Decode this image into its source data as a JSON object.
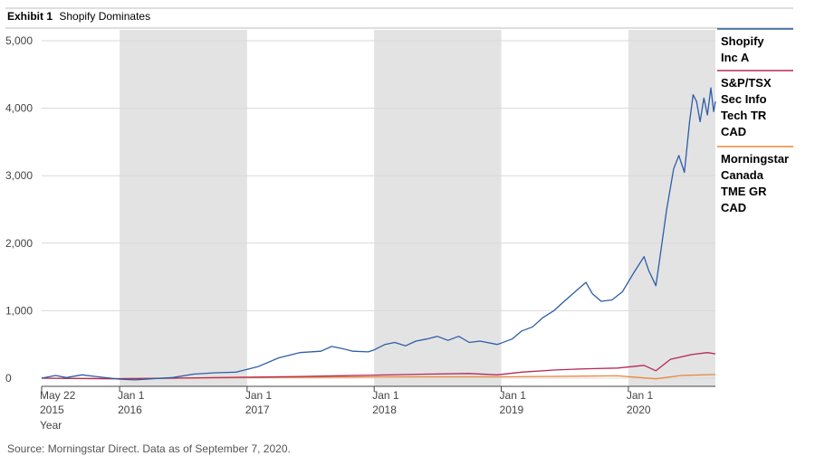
{
  "exhibit": {
    "label": "Exhibit 1",
    "title": "Shopify Dominates"
  },
  "source_note": "Source: Morningstar Direct. Data as of September 7, 2020.",
  "chart_data": {
    "type": "line",
    "ylim": [
      0,
      5000
    ],
    "y_ticks": [
      0,
      1000,
      2000,
      3000,
      4000,
      5000
    ],
    "y_tick_labels": [
      "0",
      "1,000",
      "2,000",
      "3,000",
      "4,000",
      "5,000"
    ],
    "xlim": [
      "2015-05-22",
      "2020-09-07"
    ],
    "x_ticks": [
      {
        "date": "2015-05-22",
        "line1": "May 22",
        "line2": "2015",
        "line3": "Year"
      },
      {
        "date": "2016-01-01",
        "line1": "Jan 1",
        "line2": "2016"
      },
      {
        "date": "2017-01-01",
        "line1": "Jan 1",
        "line2": "2017"
      },
      {
        "date": "2018-01-01",
        "line1": "Jan 1",
        "line2": "2018"
      },
      {
        "date": "2019-01-01",
        "line1": "Jan 1",
        "line2": "2019"
      },
      {
        "date": "2020-01-01",
        "line1": "Jan 1",
        "line2": "2020"
      }
    ],
    "shaded_years": [
      [
        "2016-01-01",
        "2017-01-01"
      ],
      [
        "2018-01-01",
        "2019-01-01"
      ],
      [
        "2020-01-01",
        "2020-09-07"
      ]
    ],
    "grid": true,
    "legend_position": "right",
    "series": [
      {
        "name": "Shopify Inc A",
        "color": "#2e5da8",
        "points": [
          [
            "2015-05-22",
            0
          ],
          [
            "2015-07-01",
            40
          ],
          [
            "2015-08-01",
            10
          ],
          [
            "2015-09-15",
            50
          ],
          [
            "2015-11-01",
            20
          ],
          [
            "2016-01-01",
            -15
          ],
          [
            "2016-02-15",
            -25
          ],
          [
            "2016-04-01",
            -10
          ],
          [
            "2016-06-01",
            10
          ],
          [
            "2016-08-01",
            60
          ],
          [
            "2016-10-01",
            80
          ],
          [
            "2016-12-01",
            90
          ],
          [
            "2017-02-01",
            170
          ],
          [
            "2017-04-01",
            300
          ],
          [
            "2017-06-01",
            380
          ],
          [
            "2017-08-01",
            400
          ],
          [
            "2017-09-01",
            470
          ],
          [
            "2017-10-01",
            440
          ],
          [
            "2017-11-01",
            400
          ],
          [
            "2017-12-15",
            390
          ],
          [
            "2018-01-01",
            420
          ],
          [
            "2018-02-01",
            500
          ],
          [
            "2018-03-01",
            530
          ],
          [
            "2018-04-01",
            480
          ],
          [
            "2018-05-01",
            550
          ],
          [
            "2018-06-01",
            580
          ],
          [
            "2018-07-01",
            620
          ],
          [
            "2018-08-01",
            560
          ],
          [
            "2018-09-01",
            620
          ],
          [
            "2018-10-01",
            530
          ],
          [
            "2018-11-01",
            550
          ],
          [
            "2018-12-20",
            500
          ],
          [
            "2019-01-01",
            520
          ],
          [
            "2019-02-01",
            580
          ],
          [
            "2019-03-01",
            700
          ],
          [
            "2019-04-01",
            760
          ],
          [
            "2019-05-01",
            900
          ],
          [
            "2019-06-01",
            1000
          ],
          [
            "2019-07-01",
            1140
          ],
          [
            "2019-08-01",
            1280
          ],
          [
            "2019-09-01",
            1420
          ],
          [
            "2019-09-20",
            1250
          ],
          [
            "2019-10-15",
            1140
          ],
          [
            "2019-11-15",
            1160
          ],
          [
            "2019-12-15",
            1280
          ],
          [
            "2020-01-15",
            1550
          ],
          [
            "2020-02-15",
            1800
          ],
          [
            "2020-02-28",
            1600
          ],
          [
            "2020-03-20",
            1370
          ],
          [
            "2020-04-01",
            1800
          ],
          [
            "2020-04-20",
            2500
          ],
          [
            "2020-05-10",
            3100
          ],
          [
            "2020-05-25",
            3300
          ],
          [
            "2020-06-10",
            3050
          ],
          [
            "2020-06-25",
            3800
          ],
          [
            "2020-07-05",
            4200
          ],
          [
            "2020-07-15",
            4100
          ],
          [
            "2020-07-25",
            3800
          ],
          [
            "2020-08-05",
            4150
          ],
          [
            "2020-08-15",
            3900
          ],
          [
            "2020-08-25",
            4300
          ],
          [
            "2020-09-02",
            3950
          ],
          [
            "2020-09-07",
            4100
          ]
        ]
      },
      {
        "name": "S&P/TSX Sec Info Tech TR CAD",
        "color": "#b52a55",
        "points": [
          [
            "2015-05-22",
            0
          ],
          [
            "2015-09-01",
            -5
          ],
          [
            "2016-01-01",
            -10
          ],
          [
            "2016-06-01",
            0
          ],
          [
            "2017-01-01",
            15
          ],
          [
            "2017-06-01",
            25
          ],
          [
            "2018-01-01",
            45
          ],
          [
            "2018-06-01",
            60
          ],
          [
            "2018-10-01",
            70
          ],
          [
            "2018-12-20",
            50
          ],
          [
            "2019-03-01",
            90
          ],
          [
            "2019-06-01",
            120
          ],
          [
            "2019-09-01",
            140
          ],
          [
            "2019-12-01",
            150
          ],
          [
            "2020-02-15",
            190
          ],
          [
            "2020-03-20",
            110
          ],
          [
            "2020-05-01",
            280
          ],
          [
            "2020-07-01",
            350
          ],
          [
            "2020-08-15",
            380
          ],
          [
            "2020-09-07",
            360
          ]
        ]
      },
      {
        "name": "Morningstar Canada TME GR CAD",
        "color": "#e8873a",
        "points": [
          [
            "2015-05-22",
            0
          ],
          [
            "2016-01-01",
            -5
          ],
          [
            "2017-01-01",
            10
          ],
          [
            "2018-01-01",
            20
          ],
          [
            "2019-01-01",
            20
          ],
          [
            "2019-12-01",
            35
          ],
          [
            "2020-03-20",
            -10
          ],
          [
            "2020-06-01",
            40
          ],
          [
            "2020-09-07",
            55
          ]
        ]
      }
    ]
  }
}
